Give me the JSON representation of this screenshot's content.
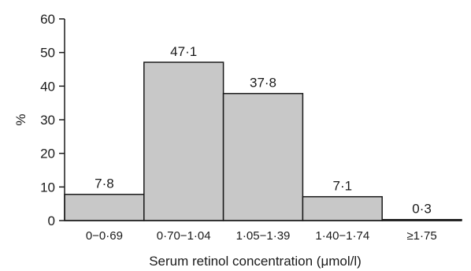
{
  "chart_data": {
    "type": "bar",
    "categories": [
      "0−0·69",
      "0·70−1·04",
      "1·05−1·39",
      "1·40−1·74",
      "≥1·75"
    ],
    "values": [
      7.8,
      47.1,
      37.8,
      7.1,
      0.3
    ],
    "data_labels": [
      "7·8",
      "47·1",
      "37·8",
      "7·1",
      "0·3"
    ],
    "xlabel": "Serum retinol concentration (μmol/l)",
    "ylabel": "%",
    "ylim": [
      0,
      60
    ],
    "yticks": [
      0,
      10,
      20,
      30,
      40,
      50,
      60
    ],
    "ytick_labels": [
      "0",
      "10",
      "20",
      "30",
      "40",
      "50",
      "60"
    ],
    "grid": false,
    "bar_color": "#c8c8c8",
    "edge_color": "#1a1a1a"
  }
}
